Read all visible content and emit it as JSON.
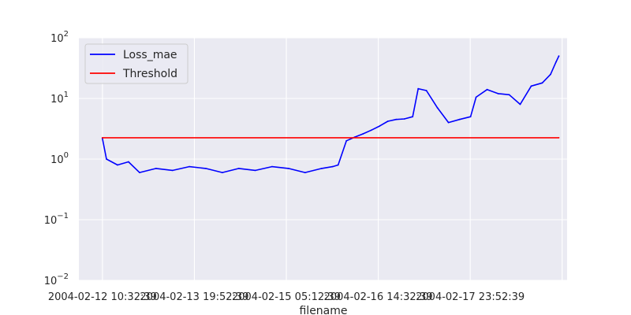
{
  "chart_data": {
    "type": "line",
    "title": "",
    "xlabel": "filename",
    "ylabel": "",
    "yscale": "log",
    "ylim": [
      0.01,
      100
    ],
    "xlim": [
      "2004-02-12 02:00",
      "2004-02-19 11:00"
    ],
    "grid": true,
    "background": "#eaeaf2",
    "legend_position": "top-left",
    "x_tick_labels": [
      "2004-02-12 10:32:39",
      "2004-02-13 19:52:39",
      "2004-02-15 05:12:39",
      "2004-02-16 14:32:39",
      "2004-02-17 23:52:39"
    ],
    "y_tick_labels": [
      {
        "base": "10",
        "exp": "−2"
      },
      {
        "base": "10",
        "exp": "−1"
      },
      {
        "base": "10",
        "exp": "0"
      },
      {
        "base": "10",
        "exp": "1"
      },
      {
        "base": "10",
        "exp": "2"
      }
    ],
    "series": [
      {
        "name": "Loss_mae",
        "color": "#0000ff",
        "x": [
          "2004-02-12 10:32",
          "2004-02-12 12:00",
          "2004-02-12 16:00",
          "2004-02-12 20:00",
          "2004-02-13 00:00",
          "2004-02-13 06:00",
          "2004-02-13 12:00",
          "2004-02-13 18:00",
          "2004-02-14 00:00",
          "2004-02-14 06:00",
          "2004-02-14 12:00",
          "2004-02-14 18:00",
          "2004-02-15 00:00",
          "2004-02-15 06:00",
          "2004-02-15 12:00",
          "2004-02-15 18:00",
          "2004-02-15 22:00",
          "2004-02-16 00:00",
          "2004-02-16 03:00",
          "2004-02-16 06:00",
          "2004-02-16 09:00",
          "2004-02-16 12:00",
          "2004-02-16 15:00",
          "2004-02-16 18:00",
          "2004-02-16 21:00",
          "2004-02-17 00:00",
          "2004-02-17 03:00",
          "2004-02-17 05:00",
          "2004-02-17 08:00",
          "2004-02-17 12:00",
          "2004-02-17 16:00",
          "2004-02-17 20:00",
          "2004-02-18 00:00",
          "2004-02-18 02:00",
          "2004-02-18 06:00",
          "2004-02-18 10:00",
          "2004-02-18 14:00",
          "2004-02-18 18:00",
          "2004-02-18 22:00",
          "2004-02-19 02:00",
          "2004-02-19 05:00",
          "2004-02-19 07:00",
          "2004-02-19 08:00"
        ],
        "values": [
          2.2,
          1.0,
          0.8,
          0.9,
          0.6,
          0.7,
          0.65,
          0.75,
          0.7,
          0.6,
          0.7,
          0.65,
          0.75,
          0.7,
          0.6,
          0.7,
          0.75,
          0.8,
          2.0,
          2.3,
          2.6,
          3.0,
          3.5,
          4.2,
          4.5,
          4.6,
          5.0,
          14.5,
          13.5,
          7.0,
          4.0,
          4.5,
          5.0,
          10.5,
          14.0,
          12.0,
          11.5,
          8.0,
          16.0,
          18.0,
          25.0,
          40.0,
          50.0
        ]
      },
      {
        "name": "Threshold",
        "color": "#ff0000",
        "x": [
          "2004-02-12 10:32",
          "2004-02-19 08:00"
        ],
        "values": [
          2.25,
          2.25
        ]
      }
    ]
  }
}
